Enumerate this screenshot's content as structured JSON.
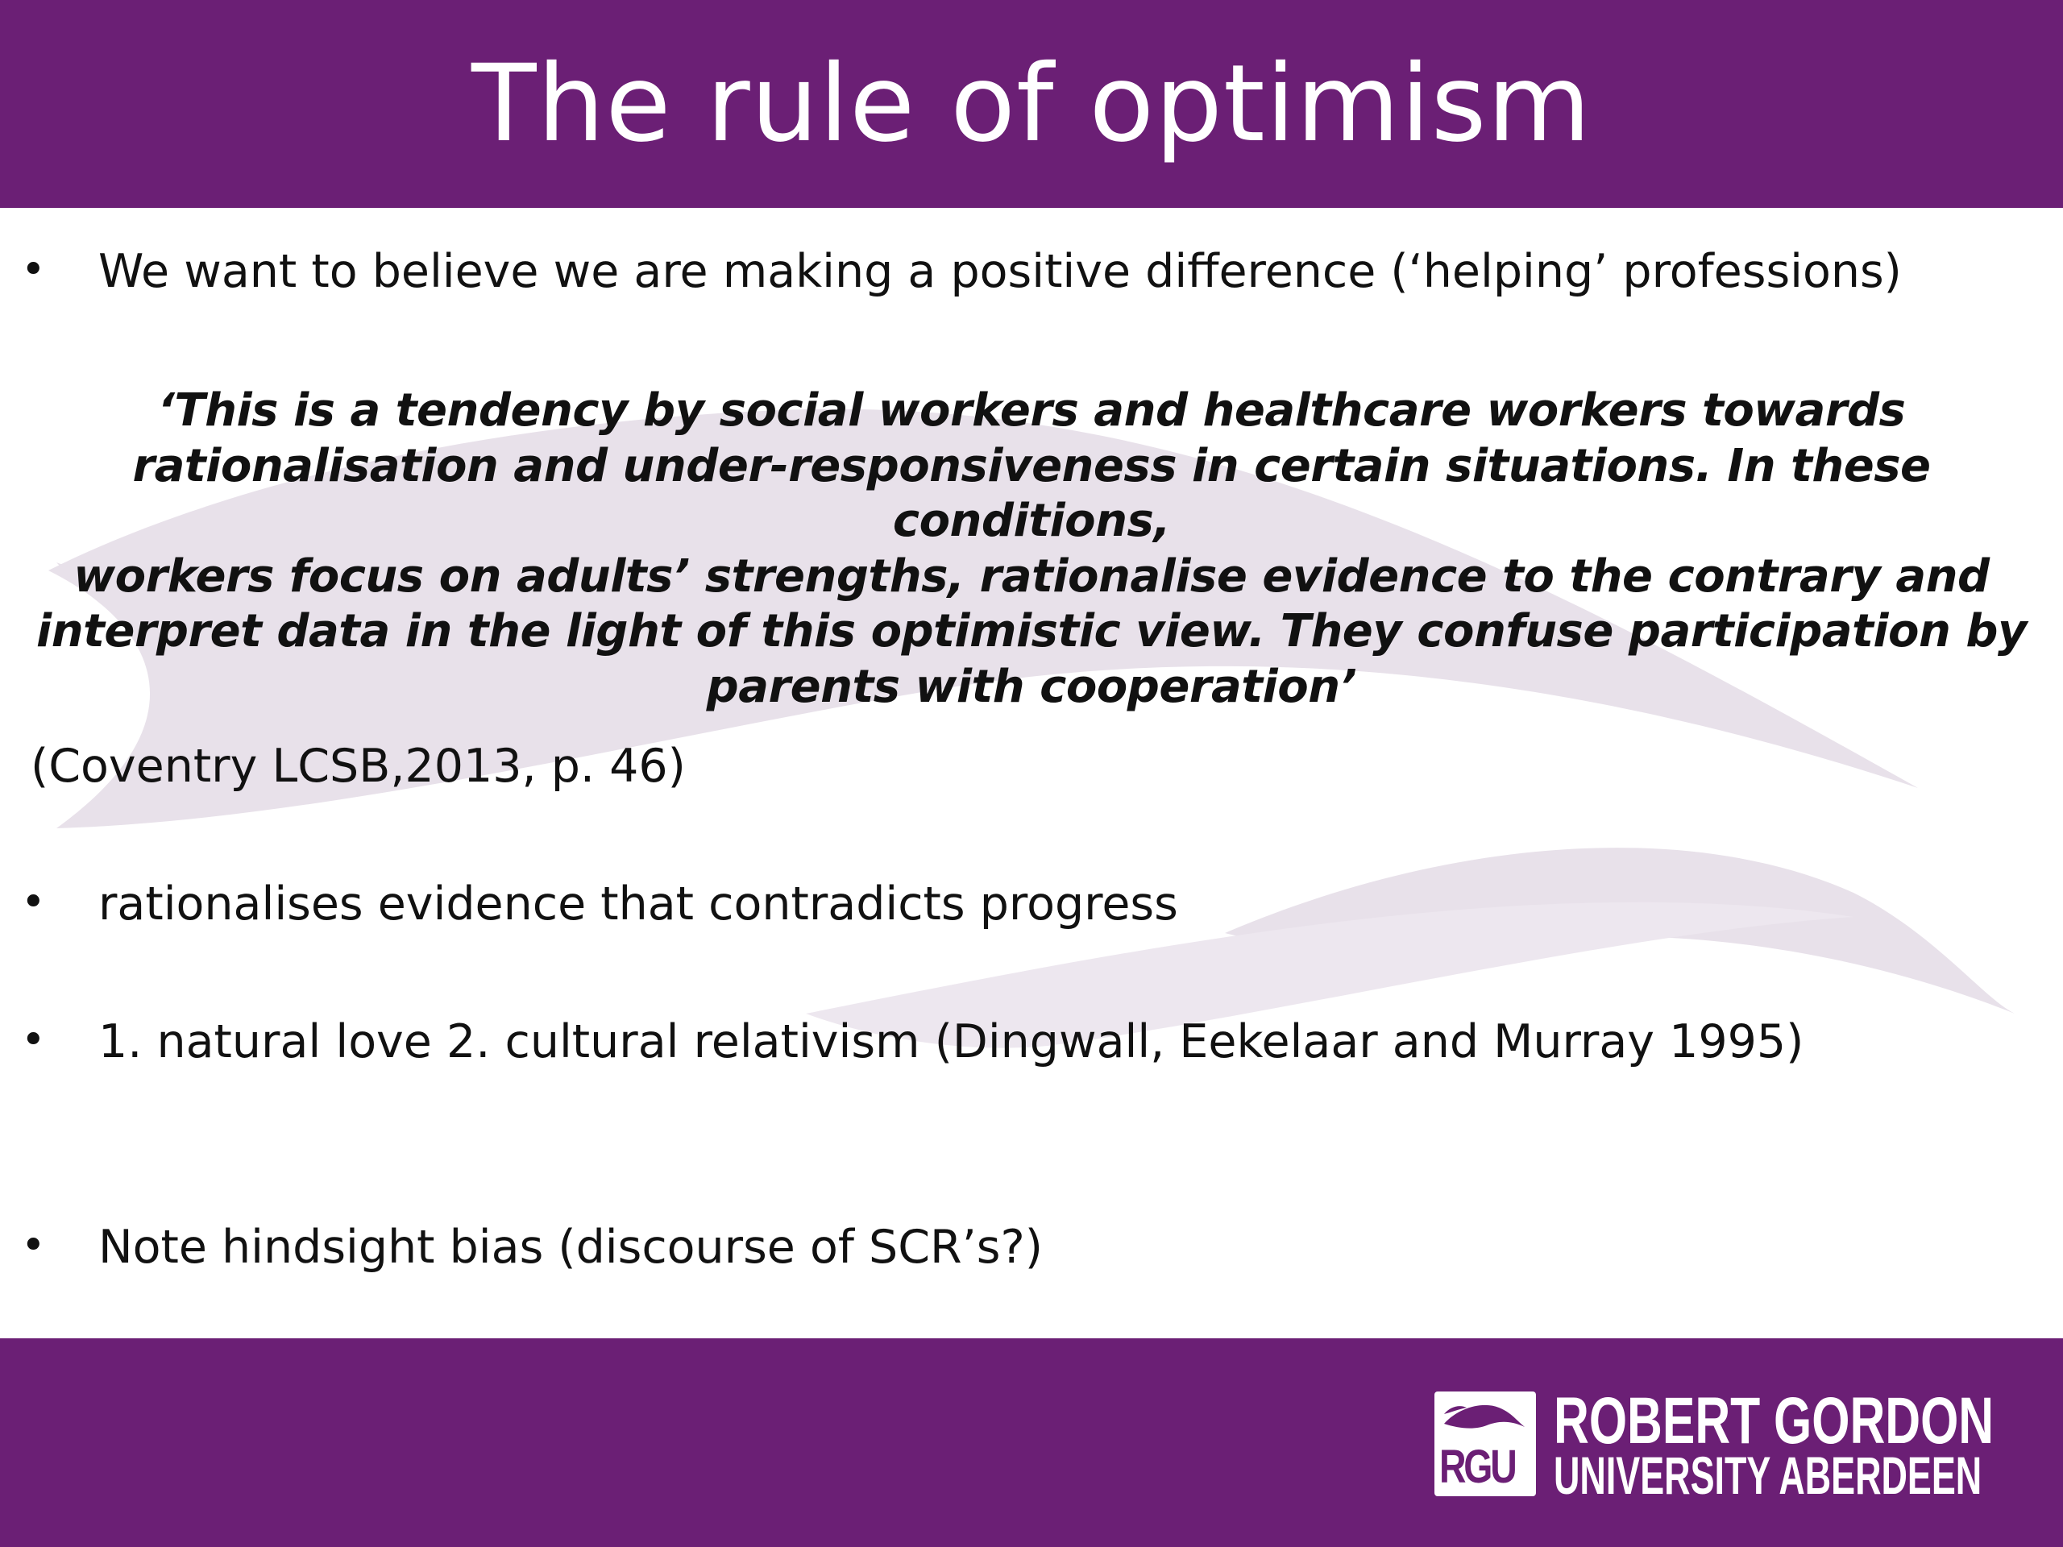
{
  "slide": {
    "title": "The rule of optimism",
    "bullets": [
      "We want to believe we are making a positive difference (‘helping’ professions)",
      "rationalises evidence that contradicts progress",
      "1. natural love 2. cultural relativism (Dingwall, Eekelaar and Murray 1995)",
      "Note hindsight bias (discourse of SCR’s?)"
    ],
    "bullet_symbol": "•",
    "quote_lines": [
      "‘This is a tendency by social workers and healthcare workers towards",
      "rationalisation and under-responsiveness in certain situations. In these conditions,",
      "workers focus on adults’ strengths, rationalise evidence to the contrary and",
      "interpret data in the light of this optimistic view. They confuse participation by",
      "parents with cooperation’"
    ],
    "citation": "(Coventry LCSB,2013, p. 46)"
  },
  "footer": {
    "logo": {
      "mark": "RGU",
      "line1": "ROBERT GORDON",
      "line2": "UNIVERSITY ABERDEEN"
    }
  },
  "colors": {
    "brand_purple": "#6b1f75",
    "watermark": "#e8e1ea"
  }
}
